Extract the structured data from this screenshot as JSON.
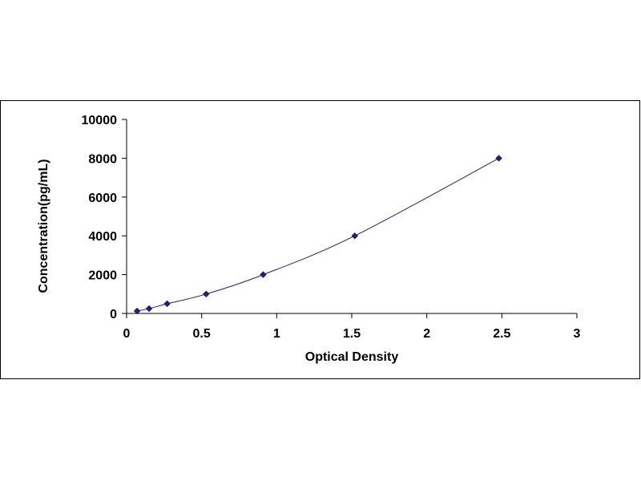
{
  "chart_data": {
    "type": "scatter",
    "title": "",
    "xlabel": "Optical Density",
    "ylabel": "Concentration(pg/mL)",
    "xlim": [
      0,
      3
    ],
    "ylim": [
      0,
      10000
    ],
    "x_ticks": [
      "0",
      "0.5",
      "1",
      "1.5",
      "2",
      "2.5",
      "3"
    ],
    "y_ticks": [
      "0",
      "2000",
      "4000",
      "6000",
      "8000",
      "10000"
    ],
    "grid": false,
    "legend": "none",
    "marker_color": "#1f1f7a",
    "line_color": "#1f1f7a",
    "fit_line": "smooth curve through points",
    "series": [
      {
        "x": [
          0.07,
          0.15,
          0.27,
          0.53,
          0.91,
          1.52,
          2.48
        ],
        "y": [
          125,
          250,
          500,
          1000,
          2000,
          4000,
          8000
        ]
      }
    ]
  }
}
